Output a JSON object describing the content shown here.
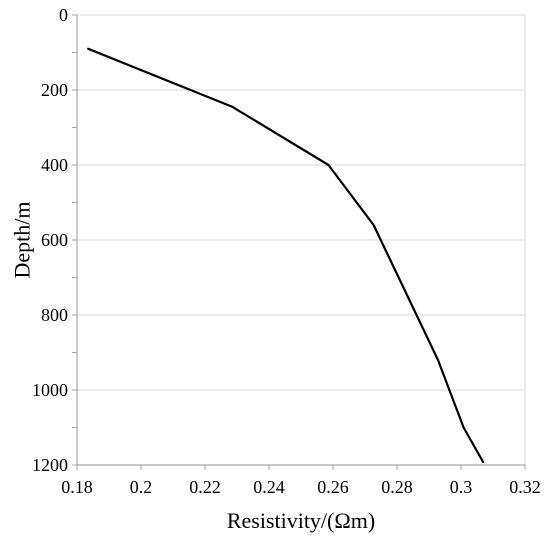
{
  "chart_data": {
    "type": "line",
    "xlabel": "Resistivity/(Ωm)",
    "ylabel": "Depth/m",
    "xlim": [
      0.18,
      0.32
    ],
    "ylim": [
      0,
      1200
    ],
    "y_inverted": true,
    "x_ticks": [
      0.18,
      0.2,
      0.22,
      0.24,
      0.26,
      0.28,
      0.3,
      0.32
    ],
    "x_tick_labels": [
      "0.18",
      "0.2",
      "0.22",
      "0.24",
      "0.26",
      "0.28",
      "0.3",
      "0.32"
    ],
    "y_ticks": [
      0,
      200,
      400,
      600,
      800,
      1000,
      1200
    ],
    "y_tick_labels": [
      "0",
      "200",
      "400",
      "600",
      "800",
      "1000",
      "1200"
    ],
    "grid": {
      "horizontal": true,
      "vertical": false
    },
    "legend": "none",
    "series": [
      {
        "color": "#000000",
        "x": [
          0.1835,
          0.2286,
          0.2586,
          0.2727,
          0.2928,
          0.3008,
          0.3069
        ],
        "y": [
          90,
          245,
          400,
          560,
          920,
          1100,
          1192
        ]
      }
    ]
  }
}
